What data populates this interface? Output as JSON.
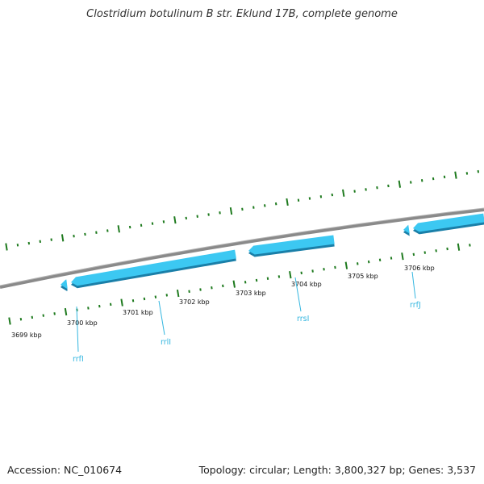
{
  "title": "Clostridium botulinum B str. Eklund 17B, complete genome",
  "footer": {
    "accession": "Accession: NC_010674",
    "summary": "Topology: circular; Length: 3,800,327 bp; Genes: 3,537"
  },
  "colors": {
    "backbone": "#8a8a8a",
    "gene_fill": "#3cc8f2",
    "gene_shadow": "#1a7fa8",
    "tick": "#1e7a1e",
    "gene_label": "#33b6e0"
  },
  "ruler": {
    "unit": "kbp",
    "labels": [
      "3699 kbp",
      "3700 kbp",
      "3701 kbp",
      "3702 kbp",
      "3703 kbp",
      "3704 kbp",
      "3705 kbp",
      "3706 kbp"
    ]
  },
  "genes": [
    {
      "name": "rrfI",
      "strand": "reverse",
      "kind": "small"
    },
    {
      "name": "rrlI",
      "strand": "reverse",
      "kind": "large"
    },
    {
      "name": "rrsI",
      "strand": "reverse",
      "kind": "medium"
    },
    {
      "name": "rrfJ",
      "strand": "reverse",
      "kind": "small"
    },
    {
      "name": "",
      "strand": "reverse",
      "kind": "large"
    }
  ]
}
